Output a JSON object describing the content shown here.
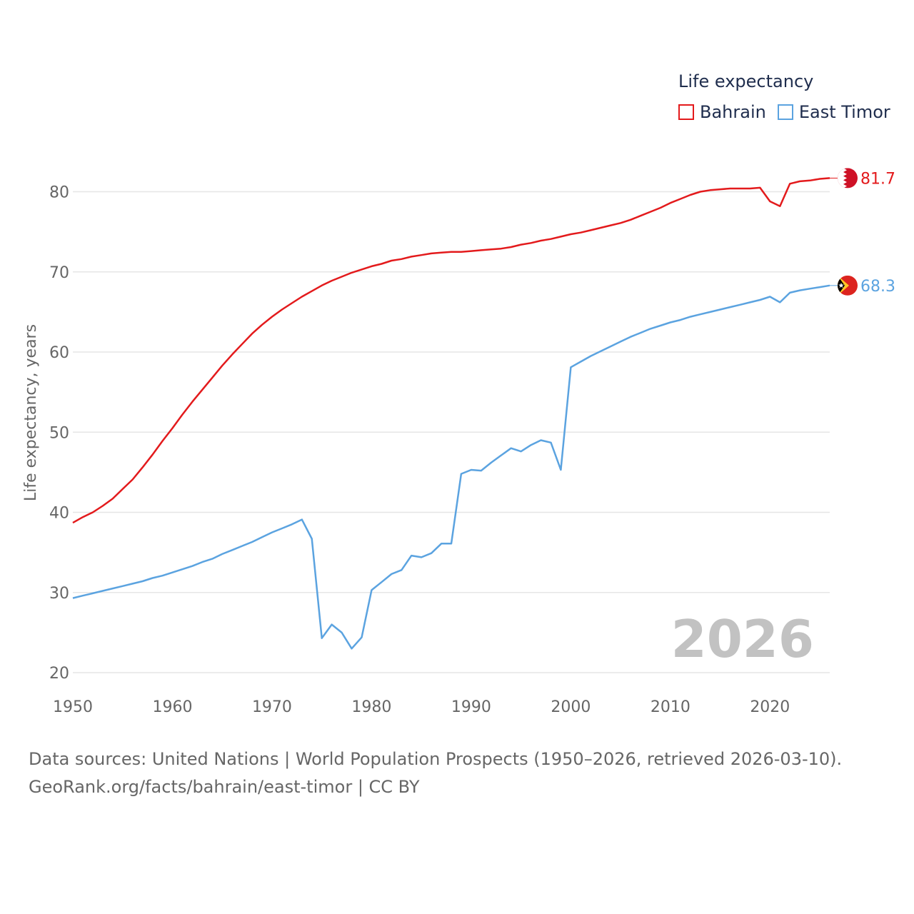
{
  "legend": {
    "title": "Life expectancy",
    "items": [
      {
        "label": "Bahrain",
        "color": "#e31a1c"
      },
      {
        "label": "East Timor",
        "color": "#5ba3e0"
      }
    ]
  },
  "chart_data": {
    "type": "line",
    "ylabel": "Life expectancy, years",
    "xlabel": "",
    "xlim": [
      1950,
      2026
    ],
    "ylim": [
      20,
      85
    ],
    "x_ticks": [
      1950,
      1960,
      1970,
      1980,
      1990,
      2000,
      2010,
      2020
    ],
    "y_ticks": [
      20,
      30,
      40,
      50,
      60,
      70,
      80
    ],
    "grid": true,
    "year_watermark": "2026",
    "series": [
      {
        "name": "Bahrain",
        "color": "#e31a1c",
        "end_label": "81.7",
        "flag": "bahrain-flag",
        "points": [
          [
            1950,
            38.7
          ],
          [
            1951,
            39.4
          ],
          [
            1952,
            40.0
          ],
          [
            1953,
            40.8
          ],
          [
            1954,
            41.7
          ],
          [
            1955,
            42.9
          ],
          [
            1956,
            44.1
          ],
          [
            1957,
            45.6
          ],
          [
            1958,
            47.2
          ],
          [
            1959,
            48.9
          ],
          [
            1960,
            50.5
          ],
          [
            1961,
            52.2
          ],
          [
            1962,
            53.8
          ],
          [
            1963,
            55.3
          ],
          [
            1964,
            56.8
          ],
          [
            1965,
            58.3
          ],
          [
            1966,
            59.7
          ],
          [
            1967,
            61.0
          ],
          [
            1968,
            62.3
          ],
          [
            1969,
            63.4
          ],
          [
            1970,
            64.4
          ],
          [
            1971,
            65.3
          ],
          [
            1972,
            66.1
          ],
          [
            1973,
            66.9
          ],
          [
            1974,
            67.6
          ],
          [
            1975,
            68.3
          ],
          [
            1976,
            68.9
          ],
          [
            1977,
            69.4
          ],
          [
            1978,
            69.9
          ],
          [
            1979,
            70.3
          ],
          [
            1980,
            70.7
          ],
          [
            1981,
            71.0
          ],
          [
            1982,
            71.4
          ],
          [
            1983,
            71.6
          ],
          [
            1984,
            71.9
          ],
          [
            1985,
            72.1
          ],
          [
            1986,
            72.3
          ],
          [
            1987,
            72.4
          ],
          [
            1988,
            72.5
          ],
          [
            1989,
            72.5
          ],
          [
            1990,
            72.6
          ],
          [
            1991,
            72.7
          ],
          [
            1992,
            72.8
          ],
          [
            1993,
            72.9
          ],
          [
            1994,
            73.1
          ],
          [
            1995,
            73.4
          ],
          [
            1996,
            73.6
          ],
          [
            1997,
            73.9
          ],
          [
            1998,
            74.1
          ],
          [
            1999,
            74.4
          ],
          [
            2000,
            74.7
          ],
          [
            2001,
            74.9
          ],
          [
            2002,
            75.2
          ],
          [
            2003,
            75.5
          ],
          [
            2004,
            75.8
          ],
          [
            2005,
            76.1
          ],
          [
            2006,
            76.5
          ],
          [
            2007,
            77.0
          ],
          [
            2008,
            77.5
          ],
          [
            2009,
            78.0
          ],
          [
            2010,
            78.6
          ],
          [
            2011,
            79.1
          ],
          [
            2012,
            79.6
          ],
          [
            2013,
            80.0
          ],
          [
            2014,
            80.2
          ],
          [
            2015,
            80.3
          ],
          [
            2016,
            80.4
          ],
          [
            2017,
            80.4
          ],
          [
            2018,
            80.4
          ],
          [
            2019,
            80.5
          ],
          [
            2020,
            78.8
          ],
          [
            2021,
            78.2
          ],
          [
            2022,
            81.0
          ],
          [
            2023,
            81.3
          ],
          [
            2024,
            81.4
          ],
          [
            2025,
            81.6
          ],
          [
            2026,
            81.7
          ]
        ]
      },
      {
        "name": "East Timor",
        "color": "#5ba3e0",
        "end_label": "68.3",
        "flag": "east-timor-flag",
        "points": [
          [
            1950,
            29.3
          ],
          [
            1951,
            29.6
          ],
          [
            1952,
            29.9
          ],
          [
            1953,
            30.2
          ],
          [
            1954,
            30.5
          ],
          [
            1955,
            30.8
          ],
          [
            1956,
            31.1
          ],
          [
            1957,
            31.4
          ],
          [
            1958,
            31.8
          ],
          [
            1959,
            32.1
          ],
          [
            1960,
            32.5
          ],
          [
            1961,
            32.9
          ],
          [
            1962,
            33.3
          ],
          [
            1963,
            33.8
          ],
          [
            1964,
            34.2
          ],
          [
            1965,
            34.8
          ],
          [
            1966,
            35.3
          ],
          [
            1967,
            35.8
          ],
          [
            1968,
            36.3
          ],
          [
            1969,
            36.9
          ],
          [
            1970,
            37.5
          ],
          [
            1971,
            38.0
          ],
          [
            1972,
            38.5
          ],
          [
            1973,
            39.1
          ],
          [
            1974,
            36.7
          ],
          [
            1975,
            24.3
          ],
          [
            1976,
            26.0
          ],
          [
            1977,
            25.0
          ],
          [
            1978,
            23.0
          ],
          [
            1979,
            24.4
          ],
          [
            1980,
            30.3
          ],
          [
            1981,
            31.3
          ],
          [
            1982,
            32.3
          ],
          [
            1983,
            32.8
          ],
          [
            1984,
            34.6
          ],
          [
            1985,
            34.4
          ],
          [
            1986,
            34.9
          ],
          [
            1987,
            36.1
          ],
          [
            1988,
            36.1
          ],
          [
            1989,
            44.8
          ],
          [
            1990,
            45.3
          ],
          [
            1991,
            45.2
          ],
          [
            1992,
            46.2
          ],
          [
            1993,
            47.1
          ],
          [
            1994,
            48.0
          ],
          [
            1995,
            47.6
          ],
          [
            1996,
            48.4
          ],
          [
            1997,
            49.0
          ],
          [
            1998,
            48.7
          ],
          [
            1999,
            45.3
          ],
          [
            2000,
            58.1
          ],
          [
            2001,
            58.8
          ],
          [
            2002,
            59.5
          ],
          [
            2003,
            60.1
          ],
          [
            2004,
            60.7
          ],
          [
            2005,
            61.3
          ],
          [
            2006,
            61.9
          ],
          [
            2007,
            62.4
          ],
          [
            2008,
            62.9
          ],
          [
            2009,
            63.3
          ],
          [
            2010,
            63.7
          ],
          [
            2011,
            64.0
          ],
          [
            2012,
            64.4
          ],
          [
            2013,
            64.7
          ],
          [
            2014,
            65.0
          ],
          [
            2015,
            65.3
          ],
          [
            2016,
            65.6
          ],
          [
            2017,
            65.9
          ],
          [
            2018,
            66.2
          ],
          [
            2019,
            66.5
          ],
          [
            2020,
            66.9
          ],
          [
            2021,
            66.2
          ],
          [
            2022,
            67.4
          ],
          [
            2023,
            67.7
          ],
          [
            2024,
            67.9
          ],
          [
            2025,
            68.1
          ],
          [
            2026,
            68.3
          ]
        ]
      }
    ]
  },
  "footer": {
    "line1": "Data sources: United Nations | World Population Prospects (1950–2026, retrieved 2026-03-10).",
    "line2": "GeoRank.org/facts/bahrain/east-timor | CC BY"
  }
}
